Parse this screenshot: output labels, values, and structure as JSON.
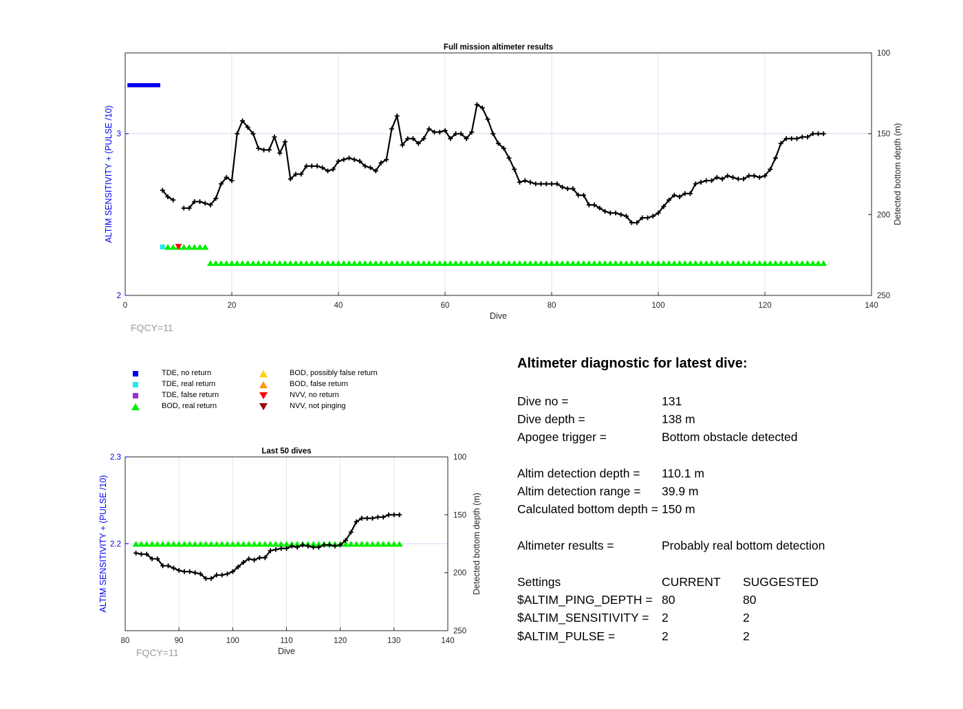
{
  "colors": {
    "tde_no_return": "#0000ee",
    "tde_real_return": "#22e6f0",
    "tde_false_return": "#9b30d9",
    "bod_real_return": "#00ee00",
    "bod_possibly_false": "#ffd000",
    "bod_false": "#ff9900",
    "nvv_no_return": "#ff0000",
    "nvv_not_pinging": "#990000",
    "left_axis": "#0000ee",
    "bottom_line": "#000000"
  },
  "chart_data": [
    {
      "type": "line",
      "title": "Full mission altimeter results",
      "xlabel": "Dive",
      "ylabel_left": "ALTIM SENSITIVITY + (PULSE /10)",
      "ylabel_right": "Detected bottom depth (m)",
      "xlim": [
        0,
        140
      ],
      "xticks": [
        0,
        20,
        40,
        60,
        80,
        100,
        120,
        140
      ],
      "ylim_left": [
        2,
        3.5
      ],
      "yticks_left": [
        2,
        3
      ],
      "ylim_right_reversed": [
        100,
        250
      ],
      "yticks_right": [
        100,
        150,
        200,
        250
      ],
      "grid": true,
      "footer": "FQCY=11",
      "tde_no_return": {
        "x": [
          1,
          2,
          3,
          4,
          5,
          6
        ],
        "y": 3.3
      },
      "tde_real_return": {
        "x": [
          7
        ],
        "y": 2.3
      },
      "nvv_no_return": {
        "x": [
          10
        ],
        "y": 2.3
      },
      "bod_real_return": [
        {
          "x_from": 8,
          "x_to": 15,
          "y": 2.3
        },
        {
          "x_from": 16,
          "x_to": 131,
          "y": 2.2
        }
      ],
      "bottom_depth_segments": [
        [
          [
            7,
            185
          ],
          [
            8,
            189
          ],
          [
            9,
            191
          ]
        ],
        [
          [
            11,
            196
          ],
          [
            12,
            196
          ],
          [
            13,
            192
          ],
          [
            14,
            192
          ],
          [
            15,
            193
          ],
          [
            16,
            194
          ],
          [
            17,
            190
          ],
          [
            18,
            181
          ],
          [
            19,
            177
          ],
          [
            20,
            179
          ],
          [
            21,
            150
          ],
          [
            22,
            142
          ],
          [
            23,
            146
          ],
          [
            24,
            150
          ],
          [
            25,
            159
          ],
          [
            26,
            160
          ],
          [
            27,
            160
          ],
          [
            28,
            152
          ],
          [
            29,
            162
          ],
          [
            30,
            155
          ],
          [
            31,
            178
          ],
          [
            32,
            175
          ],
          [
            33,
            175
          ],
          [
            34,
            170
          ],
          [
            35,
            170
          ],
          [
            36,
            170
          ],
          [
            37,
            171
          ],
          [
            38,
            173
          ],
          [
            39,
            172
          ],
          [
            40,
            167
          ],
          [
            41,
            166
          ],
          [
            42,
            165
          ],
          [
            43,
            166
          ],
          [
            44,
            167
          ],
          [
            45,
            170
          ],
          [
            46,
            171
          ],
          [
            47,
            173
          ],
          [
            48,
            168
          ],
          [
            49,
            166
          ],
          [
            50,
            147
          ],
          [
            51,
            139
          ],
          [
            52,
            157
          ],
          [
            53,
            153
          ],
          [
            54,
            153
          ],
          [
            55,
            156
          ],
          [
            56,
            153
          ],
          [
            57,
            147
          ],
          [
            58,
            149
          ],
          [
            59,
            149
          ],
          [
            60,
            148
          ],
          [
            61,
            153
          ],
          [
            62,
            150
          ],
          [
            63,
            150
          ],
          [
            64,
            153
          ],
          [
            65,
            149
          ],
          [
            66,
            132
          ],
          [
            67,
            134
          ],
          [
            68,
            141
          ],
          [
            69,
            150
          ],
          [
            70,
            156
          ],
          [
            71,
            159
          ],
          [
            72,
            165
          ],
          [
            73,
            172
          ],
          [
            74,
            180
          ],
          [
            75,
            179
          ],
          [
            76,
            180
          ],
          [
            77,
            181
          ],
          [
            78,
            181
          ],
          [
            79,
            181
          ],
          [
            80,
            181
          ],
          [
            81,
            181
          ],
          [
            82,
            183
          ],
          [
            83,
            184
          ],
          [
            84,
            184
          ],
          [
            85,
            188
          ],
          [
            86,
            188
          ],
          [
            87,
            194
          ],
          [
            88,
            194
          ],
          [
            89,
            196
          ],
          [
            90,
            198
          ],
          [
            91,
            199
          ],
          [
            92,
            199
          ],
          [
            93,
            200
          ],
          [
            94,
            201
          ],
          [
            95,
            205
          ],
          [
            96,
            205
          ],
          [
            97,
            202
          ],
          [
            98,
            202
          ],
          [
            99,
            201
          ],
          [
            100,
            199
          ],
          [
            101,
            195
          ],
          [
            102,
            191
          ],
          [
            103,
            188
          ],
          [
            104,
            189
          ],
          [
            105,
            187
          ],
          [
            106,
            187
          ],
          [
            107,
            181
          ],
          [
            108,
            180
          ],
          [
            109,
            179
          ],
          [
            110,
            179
          ],
          [
            111,
            177
          ],
          [
            112,
            178
          ],
          [
            113,
            176
          ],
          [
            114,
            177
          ],
          [
            115,
            178
          ],
          [
            116,
            178
          ],
          [
            117,
            176
          ],
          [
            118,
            176
          ],
          [
            119,
            177
          ],
          [
            120,
            176
          ],
          [
            121,
            172
          ],
          [
            122,
            165
          ],
          [
            123,
            156
          ],
          [
            124,
            153
          ],
          [
            125,
            153
          ],
          [
            126,
            153
          ],
          [
            127,
            152
          ],
          [
            128,
            152
          ],
          [
            129,
            150
          ],
          [
            130,
            150
          ],
          [
            131,
            150
          ]
        ]
      ]
    },
    {
      "type": "line",
      "title": "Last 50 dives",
      "xlabel": "Dive",
      "ylabel_left": "ALTIM SENSITIVITY + (PULSE /10)",
      "ylabel_right": "Detected bottom depth (m)",
      "xlim": [
        80,
        140
      ],
      "xticks": [
        80,
        90,
        100,
        110,
        120,
        130,
        140
      ],
      "ylim_left": [
        2.1,
        2.3
      ],
      "yticks_left": [
        2.2,
        2.3
      ],
      "ylim_right_reversed": [
        100,
        250
      ],
      "yticks_right": [
        100,
        150,
        200,
        250
      ],
      "grid": true,
      "footer": "FQCY=11",
      "bod_real_return": [
        {
          "x_from": 82,
          "x_to": 131,
          "y": 2.2
        }
      ]
    }
  ],
  "legend": {
    "col1": [
      {
        "label": "TDE, no return",
        "marker": "square",
        "color_key": "tde_no_return"
      },
      {
        "label": "TDE, real return",
        "marker": "square",
        "color_key": "tde_real_return"
      },
      {
        "label": "TDE, false return",
        "marker": "square",
        "color_key": "tde_false_return"
      },
      {
        "label": "BOD, real return",
        "marker": "triangle-up",
        "color_key": "bod_real_return"
      }
    ],
    "col2": [
      {
        "label": "BOD, possibly false return",
        "marker": "triangle-up",
        "color_key": "bod_possibly_false"
      },
      {
        "label": "BOD, false return",
        "marker": "triangle-up",
        "color_key": "bod_false"
      },
      {
        "label": "NVV, no return",
        "marker": "triangle-down",
        "color_key": "nvv_no_return"
      },
      {
        "label": "NVV, not pinging",
        "marker": "triangle-down",
        "color_key": "nvv_not_pinging"
      }
    ]
  },
  "diagnostic": {
    "title": "Altimeter diagnostic for latest dive:",
    "dive_no_label": "Dive no =",
    "dive_no": "131",
    "dive_depth_label": "Dive depth =",
    "dive_depth": "138 m",
    "apogee_label": "Apogee trigger =",
    "apogee": "Bottom obstacle detected",
    "det_depth_label": "Altim detection depth =",
    "det_depth": "110.1 m",
    "det_range_label": "Altim detection range =",
    "det_range": "39.9 m",
    "calc_depth_label": "Calculated bottom depth =",
    "calc_depth": "150 m",
    "results_label": "Altimeter results =",
    "results": "Probably real bottom detection",
    "settings_label": "Settings",
    "current_label": "CURRENT",
    "suggested_label": "SUGGESTED",
    "settings": [
      {
        "name": "$ALTIM_PING_DEPTH =",
        "current": "80",
        "suggested": "80"
      },
      {
        "name": "$ALTIM_SENSITIVITY =",
        "current": "2",
        "suggested": "2"
      },
      {
        "name": "$ALTIM_PULSE =",
        "current": "2",
        "suggested": "2"
      }
    ]
  }
}
